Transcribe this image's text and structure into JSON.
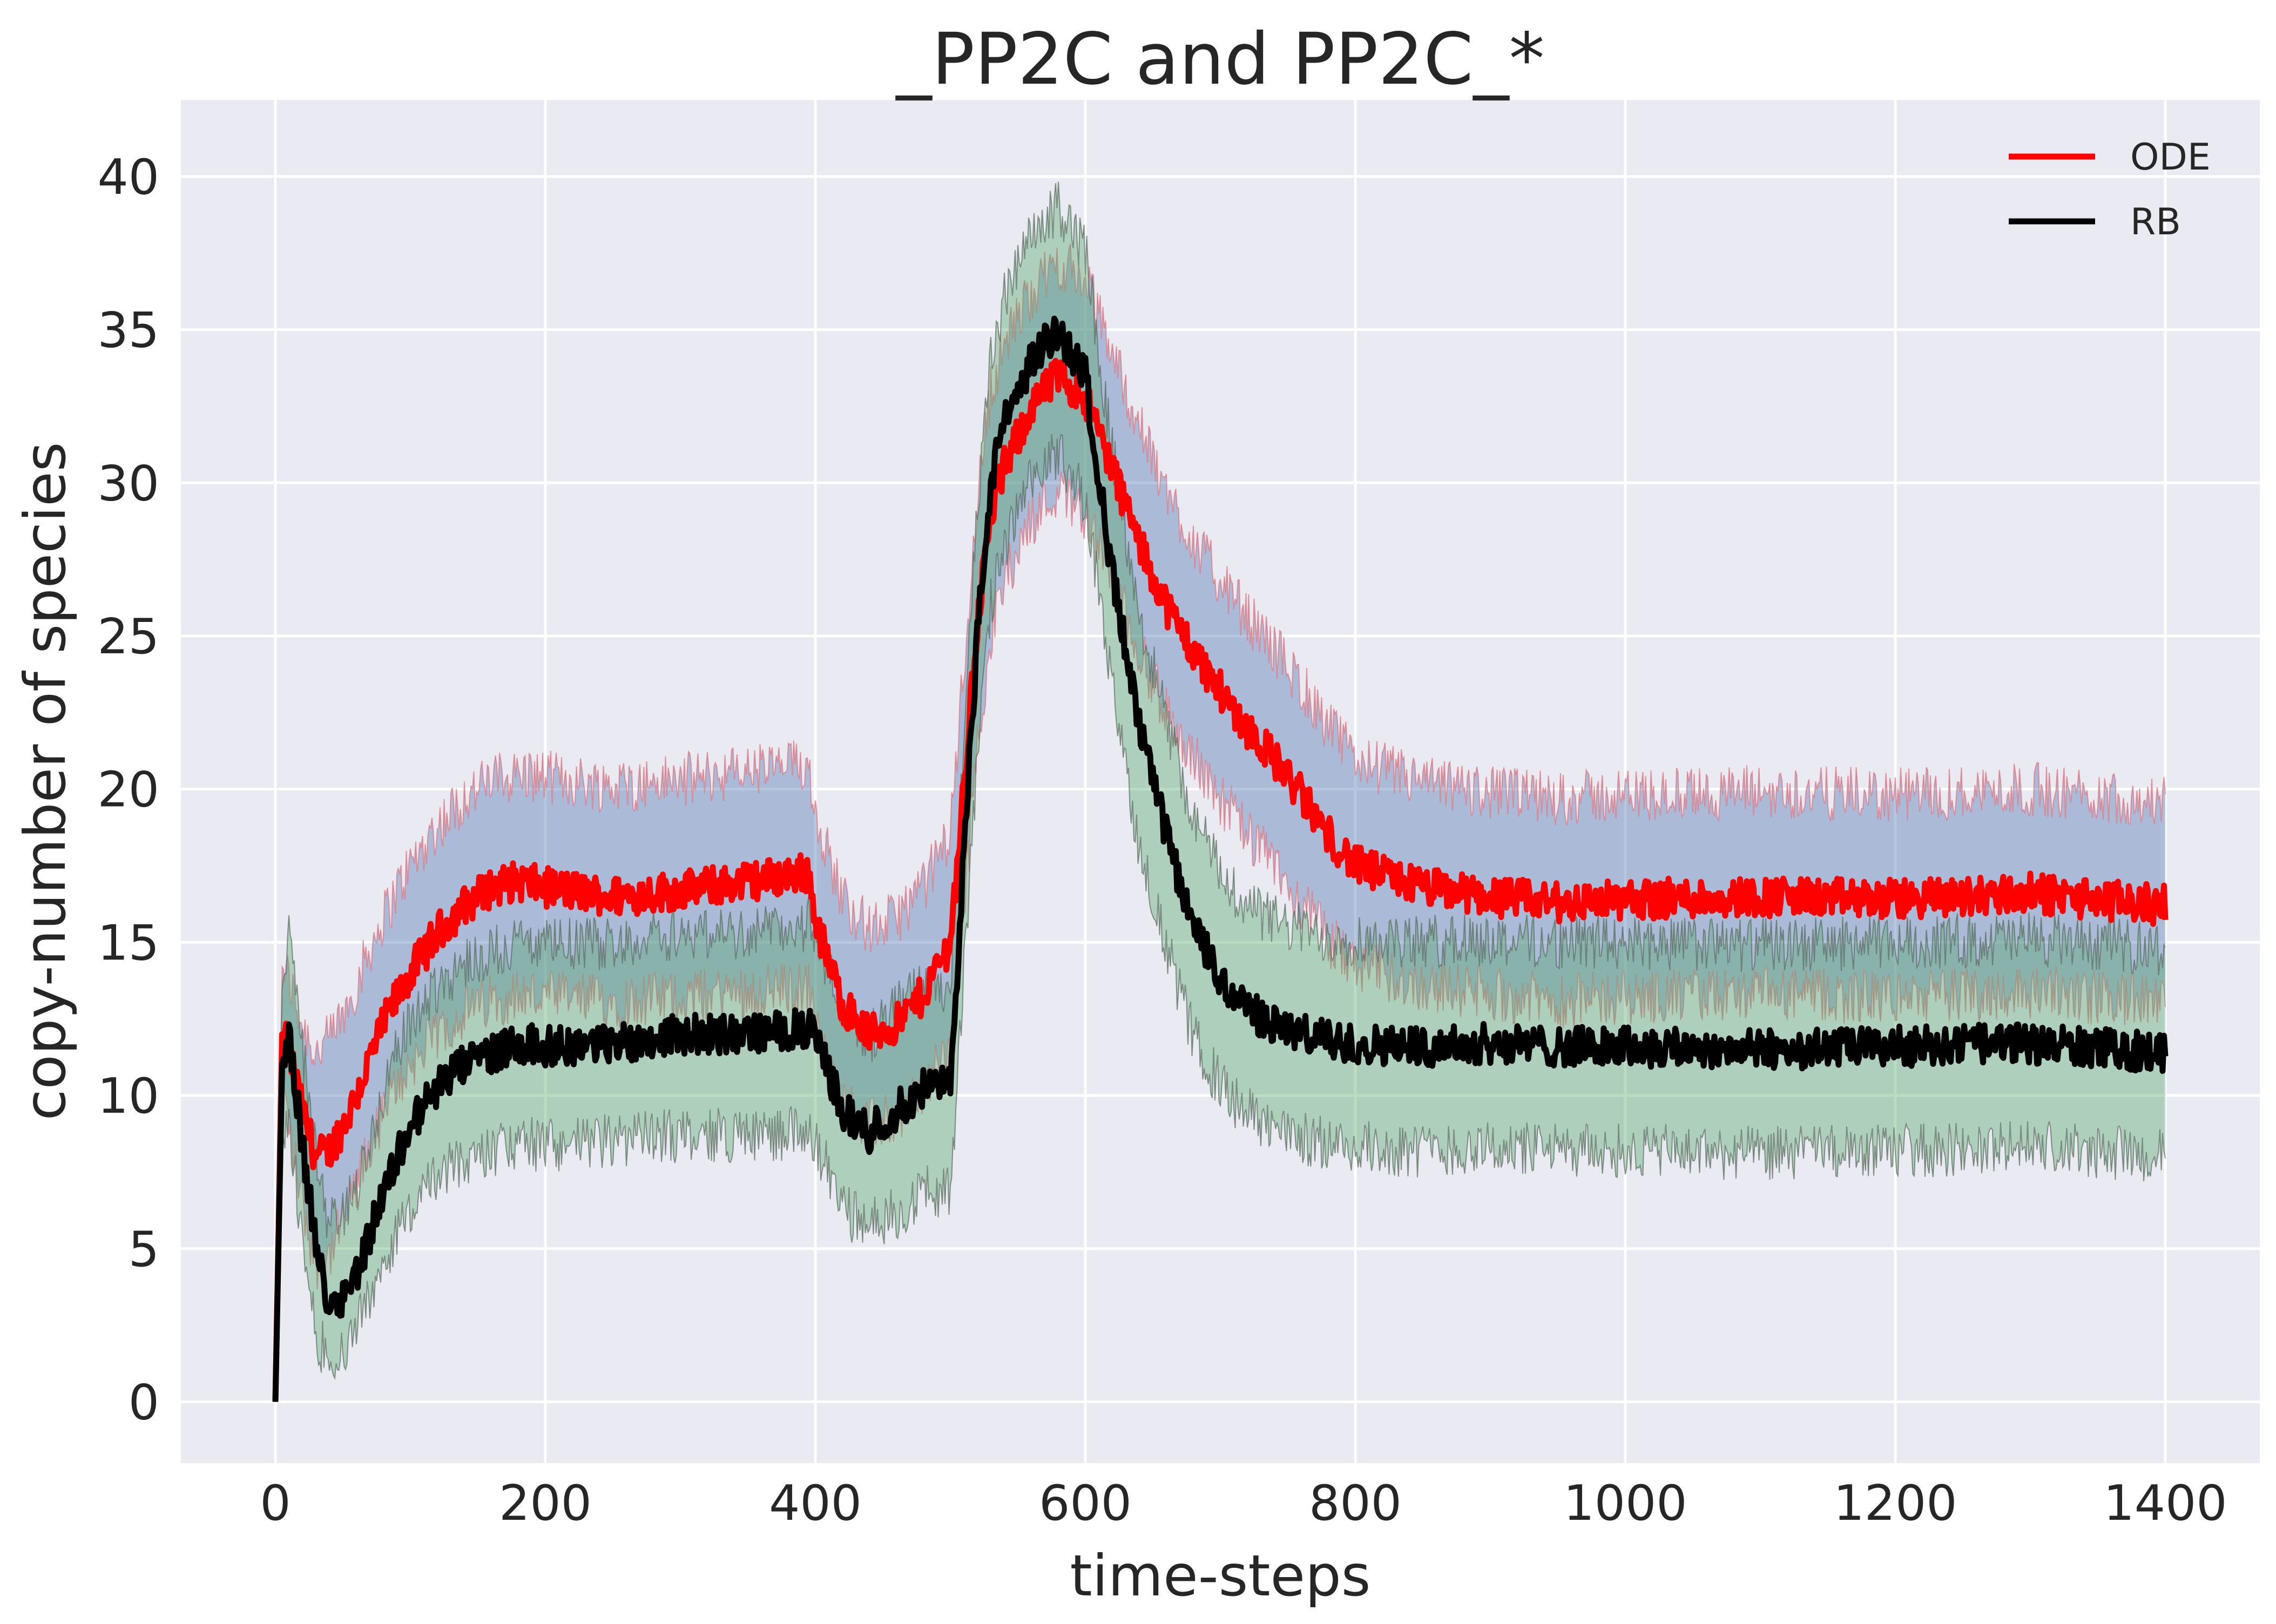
{
  "chart_data": {
    "type": "line",
    "title": "_PP2C and PP2C_*",
    "xlabel": "time-steps",
    "ylabel": "copy-number of species",
    "xlim": [
      -70,
      1470
    ],
    "ylim": [
      -2,
      42.5
    ],
    "xticks": [
      0,
      200,
      400,
      600,
      800,
      1000,
      1200,
      1400
    ],
    "yticks": [
      0,
      5,
      10,
      15,
      20,
      25,
      30,
      35,
      40
    ],
    "grid": true,
    "background": "#eaeaf2",
    "legend": {
      "position": "top-right"
    },
    "series": [
      {
        "name": "ODE",
        "color": "#ff0000",
        "band_color": "#4c72b0",
        "band_edge_color": "#e0707a",
        "x": [
          0,
          5,
          10,
          20,
          30,
          40,
          50,
          60,
          70,
          80,
          90,
          100,
          120,
          140,
          160,
          180,
          200,
          250,
          300,
          350,
          395,
          400,
          410,
          420,
          440,
          460,
          480,
          500,
          510,
          520,
          530,
          540,
          560,
          580,
          600,
          620,
          640,
          660,
          680,
          700,
          720,
          740,
          760,
          780,
          800,
          850,
          900,
          950,
          1000,
          1100,
          1200,
          1300,
          1400
        ],
        "y": [
          0,
          12.0,
          11.5,
          9.5,
          8.0,
          8.2,
          9.0,
          10.0,
          11.2,
          12.3,
          13.2,
          14.0,
          15.3,
          16.2,
          16.8,
          17.0,
          16.8,
          16.5,
          16.7,
          17.0,
          17.3,
          15.8,
          14.3,
          13.0,
          12.0,
          12.3,
          13.3,
          15.0,
          20.0,
          25.5,
          29.0,
          30.5,
          32.5,
          33.5,
          32.8,
          30.5,
          28.0,
          26.0,
          24.5,
          23.2,
          22.0,
          21.0,
          19.8,
          18.5,
          17.5,
          16.8,
          16.5,
          16.3,
          16.4,
          16.5,
          16.4,
          16.6,
          16.2
        ],
        "band_lower": [
          0,
          10.5,
          9.0,
          6.5,
          4.5,
          4.8,
          5.8,
          7.0,
          8.3,
          9.4,
          10.3,
          11.0,
          12.0,
          12.7,
          13.1,
          13.3,
          13.2,
          13.1,
          13.2,
          13.4,
          13.5,
          12.3,
          10.8,
          9.8,
          9.0,
          9.3,
          10.2,
          11.5,
          16.0,
          21.5,
          25.0,
          26.8,
          28.8,
          29.8,
          29.0,
          26.8,
          24.5,
          22.5,
          21.0,
          19.7,
          18.5,
          17.5,
          16.3,
          15.1,
          14.2,
          13.6,
          13.3,
          13.1,
          13.2,
          13.3,
          13.2,
          13.4,
          13.0
        ],
        "band_upper": [
          0,
          14.2,
          13.8,
          12.3,
          11.4,
          11.8,
          12.6,
          13.6,
          14.8,
          15.8,
          16.7,
          17.5,
          18.8,
          19.7,
          20.3,
          20.5,
          20.4,
          20.1,
          20.3,
          20.6,
          20.8,
          19.3,
          17.8,
          16.5,
          15.4,
          15.8,
          16.8,
          18.6,
          24.0,
          29.5,
          33.0,
          34.5,
          36.2,
          37.2,
          36.6,
          34.3,
          31.8,
          29.7,
          28.1,
          26.8,
          25.6,
          24.6,
          23.4,
          22.0,
          21.0,
          20.2,
          19.9,
          19.7,
          19.8,
          19.9,
          19.8,
          20.0,
          19.6
        ]
      },
      {
        "name": "RB",
        "color": "#000000",
        "band_color": "#55a868",
        "band_edge_color": "#5a6a5e",
        "x": [
          0,
          5,
          10,
          20,
          30,
          40,
          50,
          60,
          70,
          80,
          90,
          100,
          120,
          140,
          160,
          180,
          200,
          250,
          300,
          350,
          395,
          400,
          410,
          420,
          440,
          460,
          480,
          500,
          510,
          520,
          530,
          540,
          560,
          580,
          600,
          620,
          640,
          660,
          680,
          700,
          720,
          740,
          760,
          780,
          800,
          850,
          900,
          950,
          1000,
          1100,
          1200,
          1300,
          1400
        ],
        "y": [
          0,
          11.0,
          12.0,
          8.5,
          5.0,
          3.2,
          3.5,
          4.2,
          5.5,
          6.8,
          8.0,
          9.0,
          10.3,
          11.0,
          11.4,
          11.7,
          11.6,
          11.7,
          12.0,
          12.0,
          12.2,
          11.8,
          10.8,
          9.5,
          8.8,
          9.5,
          10.2,
          10.3,
          18.0,
          25.0,
          30.0,
          32.0,
          34.0,
          35.0,
          33.5,
          27.0,
          22.0,
          18.5,
          15.5,
          13.8,
          12.8,
          12.3,
          12.0,
          11.8,
          11.7,
          11.6,
          11.7,
          11.6,
          11.6,
          11.5,
          11.6,
          11.7,
          11.4
        ],
        "band_lower": [
          0,
          8.5,
          9.0,
          5.5,
          2.2,
          1.3,
          1.7,
          2.4,
          3.5,
          4.6,
          5.5,
          6.3,
          7.3,
          7.9,
          8.2,
          8.4,
          8.4,
          8.5,
          8.7,
          8.7,
          8.8,
          8.4,
          7.5,
          6.3,
          5.7,
          6.2,
          6.8,
          7.0,
          14.0,
          21.0,
          26.0,
          28.0,
          30.0,
          31.0,
          29.5,
          23.2,
          18.2,
          14.8,
          11.9,
          10.3,
          9.4,
          8.9,
          8.6,
          8.4,
          8.3,
          8.2,
          8.3,
          8.2,
          8.2,
          8.1,
          8.2,
          8.3,
          8.0
        ],
        "band_upper": [
          0,
          13.5,
          15.2,
          11.5,
          7.9,
          5.8,
          6.2,
          7.0,
          8.5,
          10.0,
          11.4,
          12.4,
          13.6,
          14.3,
          14.7,
          15.0,
          14.9,
          15.0,
          15.3,
          15.3,
          15.6,
          15.2,
          14.1,
          12.7,
          11.9,
          12.8,
          13.6,
          13.6,
          22.0,
          29.0,
          34.0,
          36.0,
          38.0,
          39.0,
          37.6,
          31.0,
          25.8,
          22.2,
          19.1,
          17.3,
          16.2,
          15.7,
          15.4,
          15.2,
          15.1,
          15.0,
          15.1,
          15.0,
          15.0,
          14.9,
          15.0,
          15.1,
          14.8
        ]
      }
    ]
  }
}
